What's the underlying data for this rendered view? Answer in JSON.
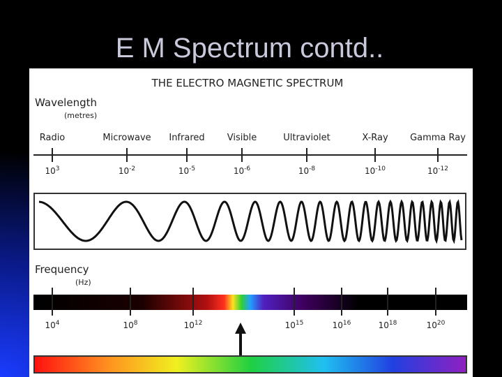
{
  "slide": {
    "title": "E M Spectrum contd.."
  },
  "diagram": {
    "title": "THE ELECTRO MAGNETIC SPECTRUM",
    "wavelength": {
      "label": "Wavelength",
      "unit": "(metres)",
      "bands": [
        {
          "name": "Radio",
          "base": "10",
          "exponent": "3"
        },
        {
          "name": "Microwave",
          "base": "10",
          "exponent": "-2"
        },
        {
          "name": "Infrared",
          "base": "10",
          "exponent": "-5"
        },
        {
          "name": "Visible",
          "base": "10",
          "exponent": "-6"
        },
        {
          "name": "Ultraviolet",
          "base": "10",
          "exponent": "-8"
        },
        {
          "name": "X-Ray",
          "base": "10",
          "exponent": "-10"
        },
        {
          "name": "Gamma Ray",
          "base": "10",
          "exponent": "-12"
        }
      ]
    },
    "frequency": {
      "label": "Frequency",
      "unit": "(Hz)",
      "ticks": [
        {
          "base": "10",
          "exponent": "4"
        },
        {
          "base": "10",
          "exponent": "8"
        },
        {
          "base": "10",
          "exponent": "12"
        },
        {
          "base": "10",
          "exponent": "15"
        },
        {
          "base": "10",
          "exponent": "16"
        },
        {
          "base": "10",
          "exponent": "18"
        },
        {
          "base": "10",
          "exponent": "20"
        }
      ]
    }
  }
}
